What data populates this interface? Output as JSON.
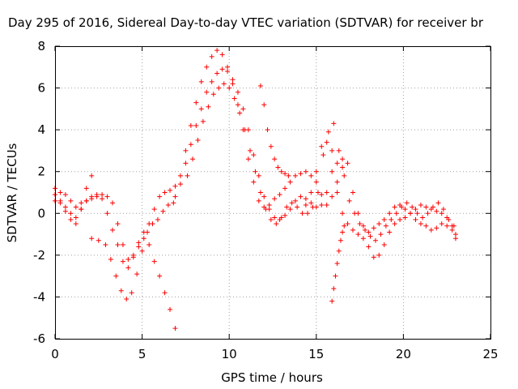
{
  "chart_data": {
    "type": "scatter",
    "title": "Day 295 of 2016, Sidereal Day-to-day VTEC variation (SDTVAR) for receiver br",
    "xlabel": "GPS time / hours",
    "ylabel": "SDTVAR / TECUs",
    "xlim": [
      0,
      25
    ],
    "ylim": [
      -6,
      8
    ],
    "xticks": [
      "0",
      "5",
      "10",
      "15",
      "20",
      "25"
    ],
    "yticks": [
      "-6",
      "-4",
      "-2",
      "0",
      "2",
      "4",
      "6",
      "8"
    ],
    "grid": true,
    "legend": "none",
    "marker": "plus",
    "color": "#ff0000",
    "series": [
      {
        "x": [
          0.0,
          0.3,
          0.6,
          0.9,
          1.2,
          1.5,
          1.8,
          2.1,
          2.4,
          2.7,
          3.0,
          3.3,
          3.6,
          3.9,
          4.2,
          4.5,
          4.8,
          5.1,
          5.4,
          5.7,
          6.0,
          6.3,
          6.6,
          6.9
        ],
        "y": [
          1.2,
          1.0,
          0.9,
          0.6,
          0.3,
          0.5,
          0.6,
          0.7,
          0.8,
          0.9,
          0.8,
          0.5,
          -0.5,
          -1.5,
          -2.2,
          -2.0,
          -1.4,
          -0.9,
          -0.5,
          0.2,
          0.8,
          1.0,
          1.1,
          1.3
        ]
      },
      {
        "x": [
          0.0,
          0.3,
          0.6,
          0.9,
          1.2,
          1.5,
          1.8,
          2.1
        ],
        "y": [
          0.9,
          0.6,
          0.1,
          -0.3,
          -0.5,
          0.2,
          1.2,
          1.8
        ]
      },
      {
        "x": [
          0.0,
          0.3,
          0.6,
          0.9,
          1.2,
          1.5,
          1.8,
          2.1,
          2.4,
          2.7,
          3.0,
          3.3,
          3.6,
          3.9,
          4.2,
          4.5,
          4.8,
          5.1,
          5.4,
          5.7,
          6.0,
          6.3,
          6.6,
          6.9
        ],
        "y": [
          0.6,
          0.5,
          0.3,
          0.0,
          -0.2,
          0.2,
          0.6,
          0.8,
          0.9,
          0.7,
          0.0,
          -0.8,
          -1.5,
          -2.3,
          -2.6,
          -2.1,
          -1.6,
          -1.2,
          -1.5,
          -2.3,
          -3.0,
          -3.8,
          -4.6,
          -5.5
        ]
      },
      {
        "x": [
          2.1,
          2.5,
          2.9,
          3.2,
          3.5,
          3.8,
          4.1,
          4.4,
          4.7,
          5.0,
          5.3,
          5.6,
          5.9,
          6.2,
          6.5,
          6.8
        ],
        "y": [
          -1.2,
          -1.3,
          -1.5,
          -2.2,
          -3.0,
          -3.7,
          -4.1,
          -3.8,
          -2.9,
          -1.8,
          -0.9,
          -0.5,
          -0.3,
          0.1,
          0.4,
          0.5
        ]
      },
      {
        "x": [
          6.9,
          7.2,
          7.5,
          7.8,
          8.1,
          8.4,
          8.7,
          9.0,
          9.3,
          9.6,
          9.9,
          10.2,
          10.5,
          10.8,
          11.1,
          11.4,
          11.7,
          12.0,
          12.3,
          12.6,
          12.9,
          13.2,
          13.5,
          13.8,
          14.1,
          14.4,
          14.7,
          15.0,
          15.3,
          15.6,
          15.9,
          16.2,
          16.5,
          16.8,
          17.1,
          17.4,
          17.7,
          18.0,
          18.3,
          18.6,
          18.9,
          19.2,
          19.5,
          19.8,
          20.1,
          20.4,
          20.7,
          21.0,
          21.3,
          21.6,
          21.9,
          22.2,
          22.5,
          22.8,
          23.0
        ],
        "y": [
          0.8,
          1.8,
          3.0,
          4.2,
          5.3,
          6.3,
          7.0,
          7.5,
          7.8,
          7.6,
          7.0,
          6.2,
          5.2,
          4.0,
          2.6,
          1.5,
          0.6,
          0.3,
          0.4,
          0.7,
          0.9,
          1.2,
          1.5,
          1.8,
          1.9,
          2.0,
          1.8,
          1.5,
          0.9,
          0.4,
          0.8,
          1.5,
          2.6,
          2.4,
          1.0,
          0.0,
          -0.6,
          -0.9,
          -0.7,
          -0.5,
          -0.3,
          0.0,
          0.3,
          0.4,
          0.2,
          0.0,
          -0.3,
          -0.5,
          -0.6,
          -0.8,
          -0.7,
          -0.5,
          -0.6,
          -0.8,
          -1.2
        ]
      },
      {
        "x": [
          7.2,
          7.5,
          7.8,
          8.1,
          8.4,
          8.7,
          9.0,
          9.3,
          9.6,
          9.9,
          10.2,
          10.5,
          10.8,
          11.1,
          11.4,
          11.7,
          12.0,
          12.3,
          12.6,
          12.9,
          13.2,
          13.5,
          13.8,
          14.1,
          14.4,
          14.7,
          15.0,
          15.3,
          15.6,
          15.9,
          16.2,
          16.5,
          16.8,
          17.1,
          17.4,
          17.7,
          18.0,
          18.3,
          18.6,
          18.9,
          19.2,
          19.5,
          19.8,
          20.1,
          20.4,
          20.7,
          21.0,
          21.3,
          21.6,
          21.9,
          22.2,
          22.5,
          22.8,
          23.0
        ],
        "y": [
          1.4,
          2.4,
          3.3,
          4.2,
          5.0,
          5.8,
          6.3,
          6.7,
          6.9,
          6.8,
          6.4,
          5.8,
          5.0,
          4.0,
          2.8,
          1.8,
          0.8,
          0.2,
          -0.2,
          -0.3,
          -0.1,
          0.2,
          0.6,
          0.8,
          0.7,
          0.5,
          0.3,
          0.4,
          1.0,
          2.0,
          1.0,
          0.0,
          -0.5,
          -0.8,
          -1.0,
          -1.2,
          -1.6,
          -2.1,
          -2.0,
          -1.5,
          -0.9,
          -0.5,
          -0.3,
          -0.2,
          0.0,
          0.2,
          0.4,
          0.3,
          0.2,
          0.1,
          0.0,
          -0.2,
          -0.6,
          -1.0
        ]
      },
      {
        "x": [
          7.6,
          7.9,
          8.2,
          8.5,
          8.8,
          9.1,
          9.4,
          9.7,
          10.0,
          10.3,
          10.6,
          10.9,
          11.2,
          11.5,
          11.8,
          12.1,
          12.4,
          12.7,
          13.0,
          13.3,
          13.6,
          13.9,
          14.2,
          14.5,
          14.8,
          15.1,
          15.4,
          15.7,
          16.0,
          16.3,
          16.6,
          16.9,
          17.2,
          17.5,
          17.8,
          18.1,
          18.4,
          18.7,
          19.0,
          19.3,
          19.6,
          19.9,
          20.2,
          20.5,
          20.8,
          21.1,
          21.4,
          21.7,
          22.0,
          22.3,
          22.6,
          22.9
        ],
        "y": [
          1.8,
          2.6,
          3.5,
          4.4,
          5.1,
          5.7,
          6.0,
          6.2,
          6.0,
          5.5,
          4.8,
          4.0,
          3.0,
          2.0,
          1.0,
          0.2,
          -0.3,
          -0.5,
          -0.2,
          0.3,
          0.5,
          0.3,
          0.0,
          0.0,
          0.3,
          1.0,
          2.8,
          3.9,
          4.3,
          3.0,
          1.8,
          0.6,
          0.0,
          -0.5,
          -0.8,
          -1.1,
          -1.3,
          -1.0,
          -0.6,
          -0.3,
          0.0,
          0.3,
          0.5,
          0.3,
          0.0,
          -0.2,
          0.0,
          0.3,
          0.5,
          0.2,
          -0.3,
          -0.6
        ]
      },
      {
        "x": [
          11.8,
          12.0,
          12.2,
          12.4,
          12.6,
          12.8,
          13.0,
          13.2,
          13.4
        ],
        "y": [
          6.1,
          5.2,
          4.0,
          3.2,
          2.6,
          2.2,
          2.0,
          1.9,
          1.8
        ]
      },
      {
        "x": [
          14.4,
          14.7,
          15.0,
          15.3,
          15.6,
          15.9,
          16.2,
          16.5
        ],
        "y": [
          0.4,
          1.0,
          2.0,
          3.2,
          3.4,
          3.0,
          2.4,
          2.2
        ]
      },
      {
        "x": [
          15.9,
          16.0,
          16.1,
          16.2,
          16.3,
          16.4,
          16.5,
          16.6
        ],
        "y": [
          -4.2,
          -3.6,
          -3.0,
          -2.4,
          -1.8,
          -1.3,
          -0.9,
          -0.6
        ]
      }
    ]
  }
}
